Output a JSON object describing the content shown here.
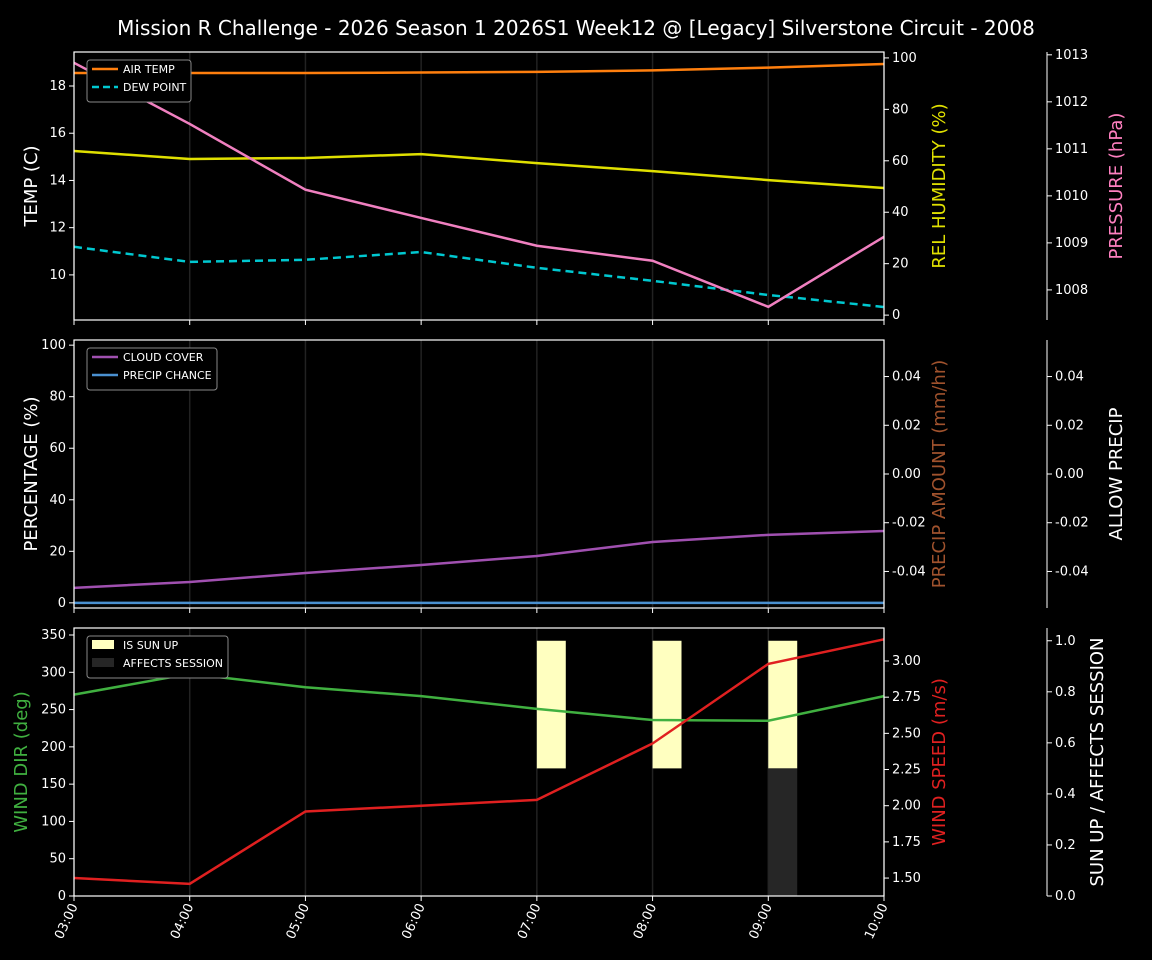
{
  "chart_data": [
    {
      "type": "line",
      "title": "Mission R Challenge - 2026 Season 1 2026S1 Week12 @ [Legacy] Silverstone Circuit - 2008",
      "x": [
        "03:00",
        "04:00",
        "05:00",
        "06:00",
        "07:00",
        "08:00",
        "09:00",
        "10:00"
      ],
      "grid": "vertical",
      "legend": "top-left",
      "axes": [
        {
          "side": "left",
          "label": "TEMP (C)",
          "color": "#ffffff",
          "ylim": [
            8.09,
            19.44
          ],
          "ticks": [
            10,
            12,
            14,
            16,
            18
          ]
        },
        {
          "side": "right",
          "label": "REL HUMIDITY (%)",
          "color": "#e0e000",
          "ylim": [
            -1.9,
            102.3
          ],
          "ticks": [
            0,
            20,
            40,
            60,
            80,
            100
          ]
        },
        {
          "side": "right-outer",
          "label": "PRESSURE (hPa)",
          "color": "#ff80c0",
          "ylim": [
            1007.36,
            1013.06
          ],
          "ticks": [
            1008,
            1009,
            1010,
            1011,
            1012,
            1013
          ]
        }
      ],
      "series": [
        {
          "name": "AIR TEMP",
          "axis": 0,
          "color": "#ff7f0e",
          "dash": false,
          "legend": true,
          "values": [
            18.55,
            18.55,
            18.55,
            18.57,
            18.6,
            18.66,
            18.78,
            18.93
          ]
        },
        {
          "name": "DEW POINT",
          "axis": 0,
          "color": "#00c8d0",
          "dash": true,
          "legend": true,
          "values": [
            11.19,
            10.55,
            10.64,
            10.97,
            10.3,
            9.75,
            9.15,
            8.64
          ]
        },
        {
          "axis": 1,
          "color": "#e0e000",
          "dash": false,
          "legend": false,
          "values": [
            63.8,
            60.7,
            61.1,
            62.6,
            59.1,
            56.0,
            52.5,
            49.4
          ]
        },
        {
          "axis": 2,
          "color": "#f080c0",
          "dash": false,
          "legend": false,
          "values": [
            1012.83,
            1011.53,
            1010.13,
            1009.53,
            1008.94,
            1008.62,
            1007.64,
            1009.13
          ]
        }
      ]
    },
    {
      "type": "line",
      "x": [
        "03:00",
        "04:00",
        "05:00",
        "06:00",
        "07:00",
        "08:00",
        "09:00",
        "10:00"
      ],
      "grid": "vertical",
      "legend": "top-left",
      "axes": [
        {
          "side": "left",
          "label": "PERCENTAGE (%)",
          "color": "#ffffff",
          "ylim": [
            -2,
            102
          ],
          "ticks": [
            0,
            20,
            40,
            60,
            80,
            100
          ]
        },
        {
          "side": "right",
          "label": "PRECIP AMOUNT (mm/hr)",
          "color": "#a0522d",
          "ylim": [
            -0.055,
            0.055
          ],
          "ticks": [
            -0.04,
            -0.02,
            0.0,
            0.02,
            0.04
          ]
        },
        {
          "side": "right-outer",
          "label": "ALLOW PRECIP",
          "color": "#ffffff",
          "ylim": [
            -0.055,
            0.055
          ],
          "ticks": [
            -0.04,
            -0.02,
            0.0,
            0.02,
            0.04
          ]
        }
      ],
      "series": [
        {
          "name": "CLOUD COVER",
          "axis": 0,
          "color": "#a050b0",
          "dash": false,
          "legend": true,
          "values": [
            5.8,
            8.1,
            11.6,
            14.7,
            18.2,
            23.6,
            26.4,
            27.9
          ]
        },
        {
          "name": "PRECIP CHANCE",
          "axis": 0,
          "color": "#4a90d0",
          "dash": false,
          "legend": true,
          "values": [
            0,
            0,
            0,
            0,
            0,
            0,
            0,
            0
          ]
        }
      ]
    },
    {
      "type": "line",
      "x": [
        "03:00",
        "04:00",
        "05:00",
        "06:00",
        "07:00",
        "08:00",
        "09:00",
        "10:00"
      ],
      "grid": "vertical",
      "legend": "top-left",
      "axes": [
        {
          "side": "left",
          "label": "WIND DIR (deg)",
          "color": "#40b040",
          "ylim": [
            0,
            359.4
          ],
          "ticks": [
            0,
            50,
            100,
            150,
            200,
            250,
            300,
            350
          ]
        },
        {
          "side": "right",
          "label": "WIND SPEED (m/s)",
          "color": "#e02020",
          "ylim": [
            1.376,
            3.228
          ],
          "ticks": [
            1.5,
            1.75,
            2.0,
            2.25,
            2.5,
            2.75,
            3.0
          ]
        },
        {
          "side": "right-outer",
          "label": "SUN UP / AFFECTS SESSION",
          "color": "#ffffff",
          "ylim": [
            0,
            1.05
          ],
          "ticks": [
            0.0,
            0.2,
            0.4,
            0.6,
            0.8,
            1.0
          ]
        }
      ],
      "bars": [
        {
          "name": "IS SUN UP",
          "axis": 2,
          "color": "#ffffc0",
          "base": 0.5,
          "values": [
            0,
            0,
            0,
            0,
            0.5,
            0.5,
            0.5,
            0
          ]
        },
        {
          "name": "AFFECTS SESSION",
          "axis": 2,
          "color": "#262626",
          "base": 0,
          "values": [
            0,
            0,
            0,
            0,
            0,
            0,
            0.5,
            0
          ]
        }
      ],
      "series": [
        {
          "axis": 0,
          "color": "#40b040",
          "dash": false,
          "legend": false,
          "values": [
            270,
            298,
            280,
            268,
            251,
            236,
            235,
            268
          ]
        },
        {
          "axis": 1,
          "color": "#e02020",
          "dash": false,
          "legend": false,
          "values": [
            1.5,
            1.46,
            1.96,
            2.0,
            2.04,
            2.43,
            2.98,
            3.15
          ]
        }
      ]
    }
  ]
}
